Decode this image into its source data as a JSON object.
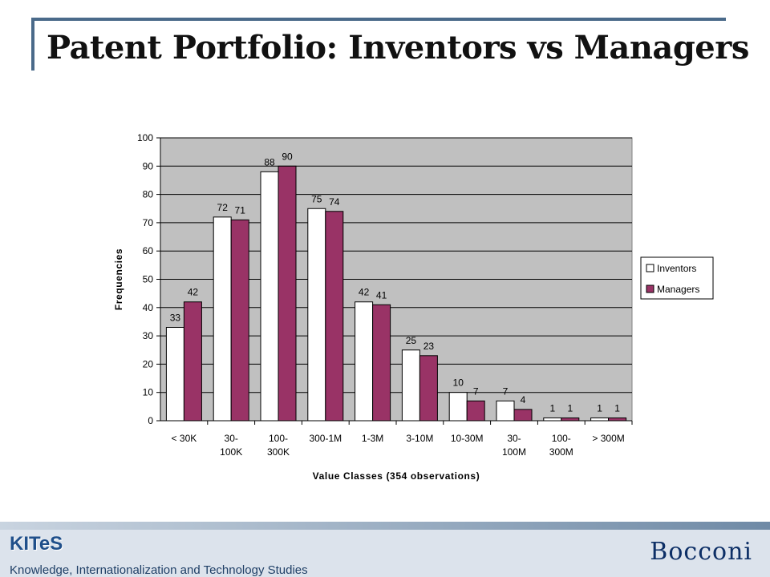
{
  "slide": {
    "title": "Patent Portfolio: Inventors vs Managers"
  },
  "footer": {
    "logo": "KITeS",
    "subtitle": "Knowledge, Internationalization and Technology Studies",
    "brand": "Bocconi"
  },
  "chart_data": {
    "type": "bar",
    "categories": [
      [
        "< 30K"
      ],
      [
        "30-",
        "100K"
      ],
      [
        "100-",
        "300K"
      ],
      [
        "300-1M"
      ],
      [
        "1-3M"
      ],
      [
        "3-10M"
      ],
      [
        "10-30M"
      ],
      [
        "30-",
        "100M"
      ],
      [
        "100-",
        "300M"
      ],
      [
        "> 300M"
      ]
    ],
    "series": [
      {
        "name": "Inventors",
        "values": [
          33,
          72,
          88,
          75,
          42,
          25,
          10,
          7,
          1,
          1
        ],
        "color": "#ffffff"
      },
      {
        "name": "Managers",
        "values": [
          42,
          71,
          90,
          74,
          41,
          23,
          7,
          4,
          1,
          1
        ],
        "color": "#993366"
      }
    ],
    "xlabel": "Value Classes (354 observations)",
    "ylabel": "Frequencies",
    "ylim": [
      0,
      100
    ],
    "yticks": [
      0,
      10,
      20,
      30,
      40,
      50,
      60,
      70,
      80,
      90,
      100
    ],
    "plot_background": "#c0c0c0",
    "grid": true,
    "legend": "right",
    "data_labels": true
  }
}
